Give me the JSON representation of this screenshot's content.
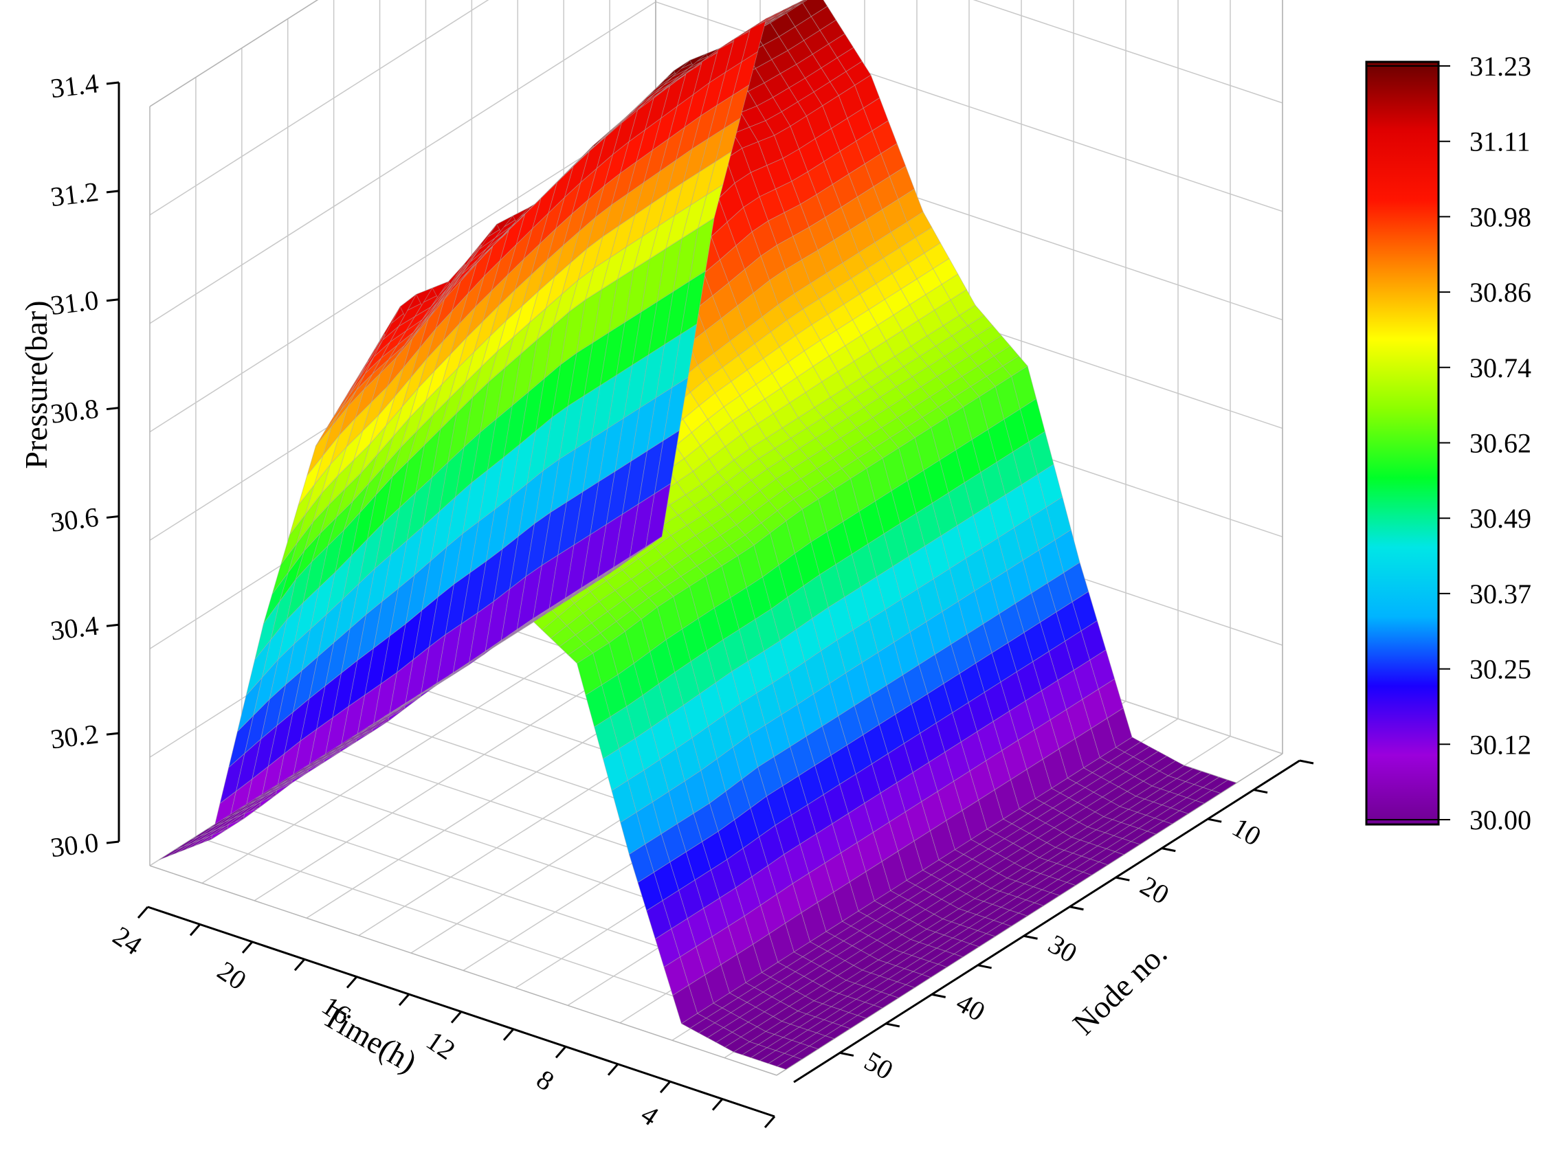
{
  "chart_data": {
    "type": "surface3d",
    "title": "",
    "zlabel": "Pressure(bar)",
    "xlabel": "Time(h)",
    "ylabel": "Node no.",
    "zlim": [
      30.0,
      31.4
    ],
    "z_ticks": [
      "30.0",
      "30.2",
      "30.4",
      "30.6",
      "30.8",
      "31.0",
      "31.2",
      "31.4"
    ],
    "time_ticks": [
      "24",
      "20",
      "16",
      "12",
      "8",
      "4"
    ],
    "node_ticks": [
      "10",
      "20",
      "30",
      "40",
      "50"
    ],
    "grid": true,
    "colorbar": {
      "labels": [
        "31.23",
        "31.11",
        "30.98",
        "30.86",
        "30.74",
        "30.62",
        "30.49",
        "30.37",
        "30.25",
        "30.12",
        "30.00"
      ],
      "min": 30.0,
      "max": 31.23,
      "colors": [
        "#6e0090",
        "#9b00dc",
        "#1a00ff",
        "#00b4ff",
        "#00e6e6",
        "#00ff28",
        "#8cff00",
        "#ffff00",
        "#ff8c00",
        "#ff1400",
        "#e00000",
        "#6a0000"
      ]
    },
    "time_h": [
      0,
      2,
      4,
      6,
      8,
      10,
      12,
      14,
      16,
      18,
      20,
      22,
      24
    ],
    "nodes": [
      1,
      5,
      10,
      15,
      20,
      25,
      30,
      35,
      40,
      45,
      50
    ],
    "pressure_bar": [
      [
        30.0,
        30.0,
        30.02,
        30.3,
        30.62,
        30.68,
        30.73,
        30.9,
        31.05,
        30.86,
        30.5,
        30.07,
        30.0
      ],
      [
        30.0,
        30.0,
        30.02,
        30.3,
        30.62,
        30.7,
        30.78,
        30.95,
        31.12,
        30.9,
        30.55,
        30.07,
        30.0
      ],
      [
        30.0,
        30.0,
        30.02,
        30.3,
        30.63,
        30.7,
        30.8,
        30.97,
        31.1,
        30.93,
        30.58,
        30.08,
        30.0
      ],
      [
        30.0,
        30.0,
        30.02,
        30.31,
        30.63,
        30.71,
        30.81,
        31.0,
        31.15,
        30.98,
        30.62,
        30.08,
        30.0
      ],
      [
        30.0,
        30.0,
        30.02,
        30.31,
        30.63,
        30.71,
        30.82,
        31.02,
        31.14,
        31.02,
        30.65,
        30.08,
        30.0
      ],
      [
        30.0,
        30.0,
        30.02,
        30.31,
        30.64,
        30.72,
        30.84,
        31.05,
        31.18,
        31.05,
        30.68,
        30.09,
        30.0
      ],
      [
        30.0,
        30.0,
        30.02,
        30.31,
        30.64,
        30.72,
        30.85,
        31.07,
        31.2,
        31.08,
        30.7,
        30.09,
        30.0
      ],
      [
        30.0,
        30.0,
        30.02,
        30.31,
        30.64,
        30.72,
        30.86,
        31.1,
        31.23,
        31.1,
        30.72,
        30.1,
        30.0
      ],
      [
        30.0,
        30.0,
        30.02,
        30.31,
        30.64,
        30.72,
        30.86,
        31.08,
        31.21,
        31.11,
        30.72,
        30.1,
        30.0
      ],
      [
        30.0,
        30.0,
        30.02,
        30.31,
        30.64,
        30.72,
        30.86,
        31.08,
        31.2,
        31.12,
        30.72,
        30.1,
        30.0
      ],
      [
        30.0,
        30.0,
        30.02,
        30.31,
        30.64,
        30.72,
        30.86,
        31.08,
        31.2,
        31.12,
        30.72,
        30.1,
        30.0
      ]
    ]
  }
}
